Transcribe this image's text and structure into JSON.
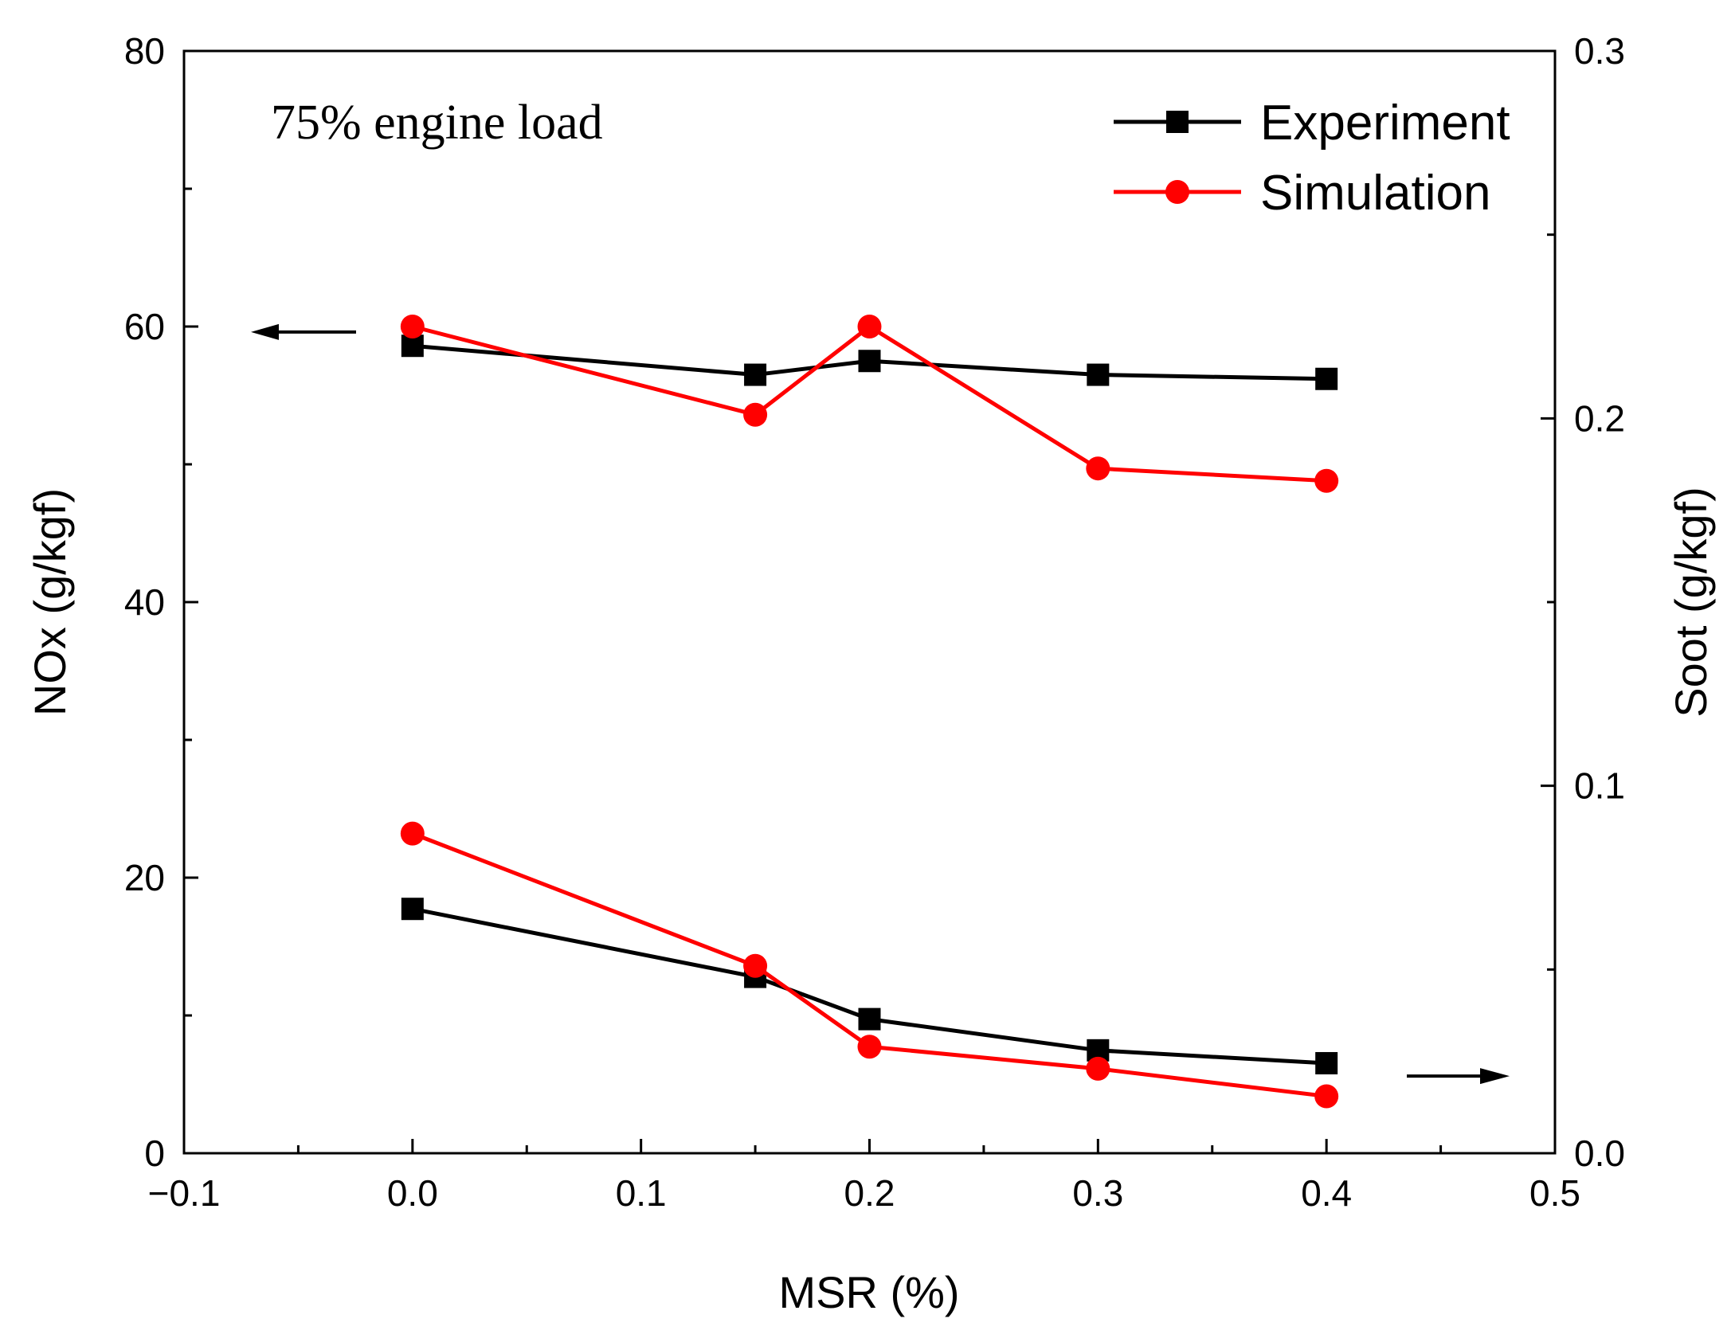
{
  "chart_data": {
    "type": "line",
    "annotation": "75% engine load",
    "xlabel": "MSR (%)",
    "ylabel_left": "NOx (g/kgf)",
    "ylabel_right": "Soot (g/kgf)",
    "xlim": [
      -0.1,
      0.5
    ],
    "ylim_left": [
      0,
      80
    ],
    "ylim_right": [
      0,
      0.3
    ],
    "x_ticks": [
      -0.1,
      0.0,
      0.1,
      0.2,
      0.3,
      0.4,
      0.5
    ],
    "x_tick_labels": [
      "−0.1",
      "0.0",
      "0.1",
      "0.2",
      "0.3",
      "0.4",
      "0.5"
    ],
    "y_left_ticks": [
      0,
      20,
      40,
      60,
      80
    ],
    "y_left_tick_labels": [
      "0",
      "20",
      "40",
      "60",
      "80"
    ],
    "y_right_ticks": [
      0,
      0.1,
      0.2,
      0.3
    ],
    "y_right_tick_labels": [
      "0.0",
      "0.1",
      "0.2",
      "0.3"
    ],
    "legend": {
      "location": "top-right",
      "entries": [
        "Experiment",
        "Simulation"
      ]
    },
    "colors": {
      "Experiment": "#000000",
      "Simulation": "#ff0000"
    },
    "x": [
      0.0,
      0.15,
      0.2,
      0.3,
      0.4
    ],
    "series": [
      {
        "name": "Experiment",
        "quantity": "NOx",
        "axis": "left",
        "marker": "square",
        "values": [
          58.6,
          56.5,
          57.5,
          56.5,
          56.2
        ]
      },
      {
        "name": "Simulation",
        "quantity": "NOx",
        "axis": "left",
        "marker": "circle",
        "values": [
          60.0,
          53.6,
          60.0,
          49.7,
          48.8
        ]
      },
      {
        "name": "Experiment",
        "quantity": "Soot",
        "axis": "right",
        "marker": "square",
        "values": [
          0.0665,
          0.048,
          0.0365,
          0.028,
          0.0245
        ]
      },
      {
        "name": "Simulation",
        "quantity": "Soot",
        "axis": "right",
        "marker": "circle",
        "values": [
          0.087,
          0.051,
          0.029,
          0.023,
          0.0155
        ]
      }
    ],
    "axis_arrows": [
      {
        "points_to": "left",
        "near_value": 59.6,
        "axis": "left"
      },
      {
        "points_to": "right",
        "near_value": 0.021,
        "axis": "right"
      }
    ]
  }
}
